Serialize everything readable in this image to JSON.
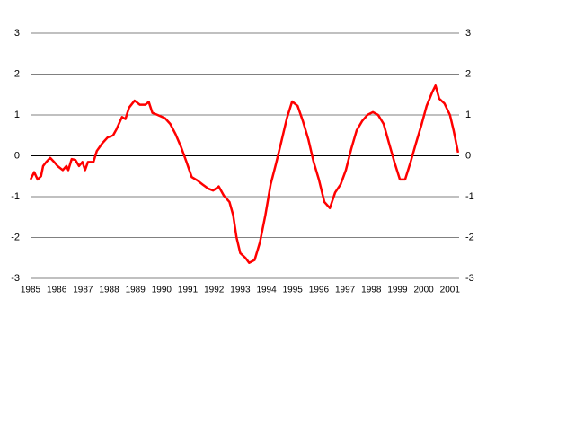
{
  "chart_data": {
    "type": "line",
    "x": [
      1985.0,
      1985.14,
      1985.27,
      1985.4,
      1985.48,
      1985.6,
      1985.75,
      1985.9,
      1986.03,
      1986.23,
      1986.37,
      1986.44,
      1986.57,
      1986.71,
      1986.85,
      1986.98,
      1987.08,
      1987.19,
      1987.4,
      1987.53,
      1987.73,
      1987.94,
      1988.15,
      1988.28,
      1988.49,
      1988.62,
      1988.76,
      1988.97,
      1989.17,
      1989.38,
      1989.51,
      1989.65,
      1989.85,
      1990.13,
      1990.33,
      1990.54,
      1990.74,
      1990.95,
      1991.15,
      1991.36,
      1991.56,
      1991.77,
      1991.97,
      1992.18,
      1992.38,
      1992.59,
      1992.73,
      1992.86,
      1993.0,
      1993.2,
      1993.34,
      1993.55,
      1993.75,
      1993.96,
      1994.16,
      1994.37,
      1994.57,
      1994.78,
      1994.98,
      1995.19,
      1995.39,
      1995.6,
      1995.8,
      1996.0,
      1996.21,
      1996.42,
      1996.62,
      1996.83,
      1997.03,
      1997.24,
      1997.44,
      1997.65,
      1997.85,
      1998.06,
      1998.26,
      1998.47,
      1998.68,
      1998.88,
      1999.09,
      1999.29,
      1999.5,
      1999.7,
      1999.91,
      2000.11,
      2000.32,
      2000.45,
      2000.59,
      2000.79,
      2001.0,
      2001.14,
      2001.31
    ],
    "series": [
      {
        "color": "#ff0000",
        "values": [
          -0.58,
          -0.4,
          -0.58,
          -0.5,
          -0.25,
          -0.15,
          -0.05,
          -0.15,
          -0.25,
          -0.35,
          -0.25,
          -0.35,
          -0.08,
          -0.1,
          -0.25,
          -0.15,
          -0.35,
          -0.15,
          -0.15,
          0.12,
          0.3,
          0.45,
          0.5,
          0.65,
          0.95,
          0.9,
          1.18,
          1.35,
          1.25,
          1.25,
          1.32,
          1.05,
          1.0,
          0.92,
          0.78,
          0.52,
          0.22,
          -0.15,
          -0.52,
          -0.6,
          -0.7,
          -0.8,
          -0.85,
          -0.75,
          -0.98,
          -1.13,
          -1.45,
          -2.0,
          -2.38,
          -2.5,
          -2.62,
          -2.55,
          -2.12,
          -1.45,
          -0.7,
          -0.18,
          0.35,
          0.92,
          1.33,
          1.22,
          0.85,
          0.4,
          -0.15,
          -0.58,
          -1.13,
          -1.28,
          -0.9,
          -0.7,
          -0.35,
          0.18,
          0.62,
          0.85,
          1.0,
          1.07,
          1.0,
          0.78,
          0.3,
          -0.15,
          -0.58,
          -0.58,
          -0.15,
          0.3,
          0.75,
          1.22,
          1.55,
          1.72,
          1.4,
          1.28,
          1.0,
          0.62,
          0.08
        ]
      }
    ],
    "xlim": [
      1985,
      2001.35
    ],
    "xticks": [
      1985,
      1986,
      1987,
      1988,
      1989,
      1990,
      1991,
      1992,
      1993,
      1994,
      1995,
      1996,
      1997,
      1998,
      1999,
      2000,
      2001
    ],
    "ylim": [
      -3,
      3
    ],
    "yticks": [
      -3,
      -2,
      -1,
      0,
      1,
      2,
      3
    ],
    "y2lim": [
      -3,
      3
    ],
    "y2ticks": [
      -3,
      -2,
      -1,
      0,
      1,
      2,
      3
    ],
    "grid": true
  }
}
